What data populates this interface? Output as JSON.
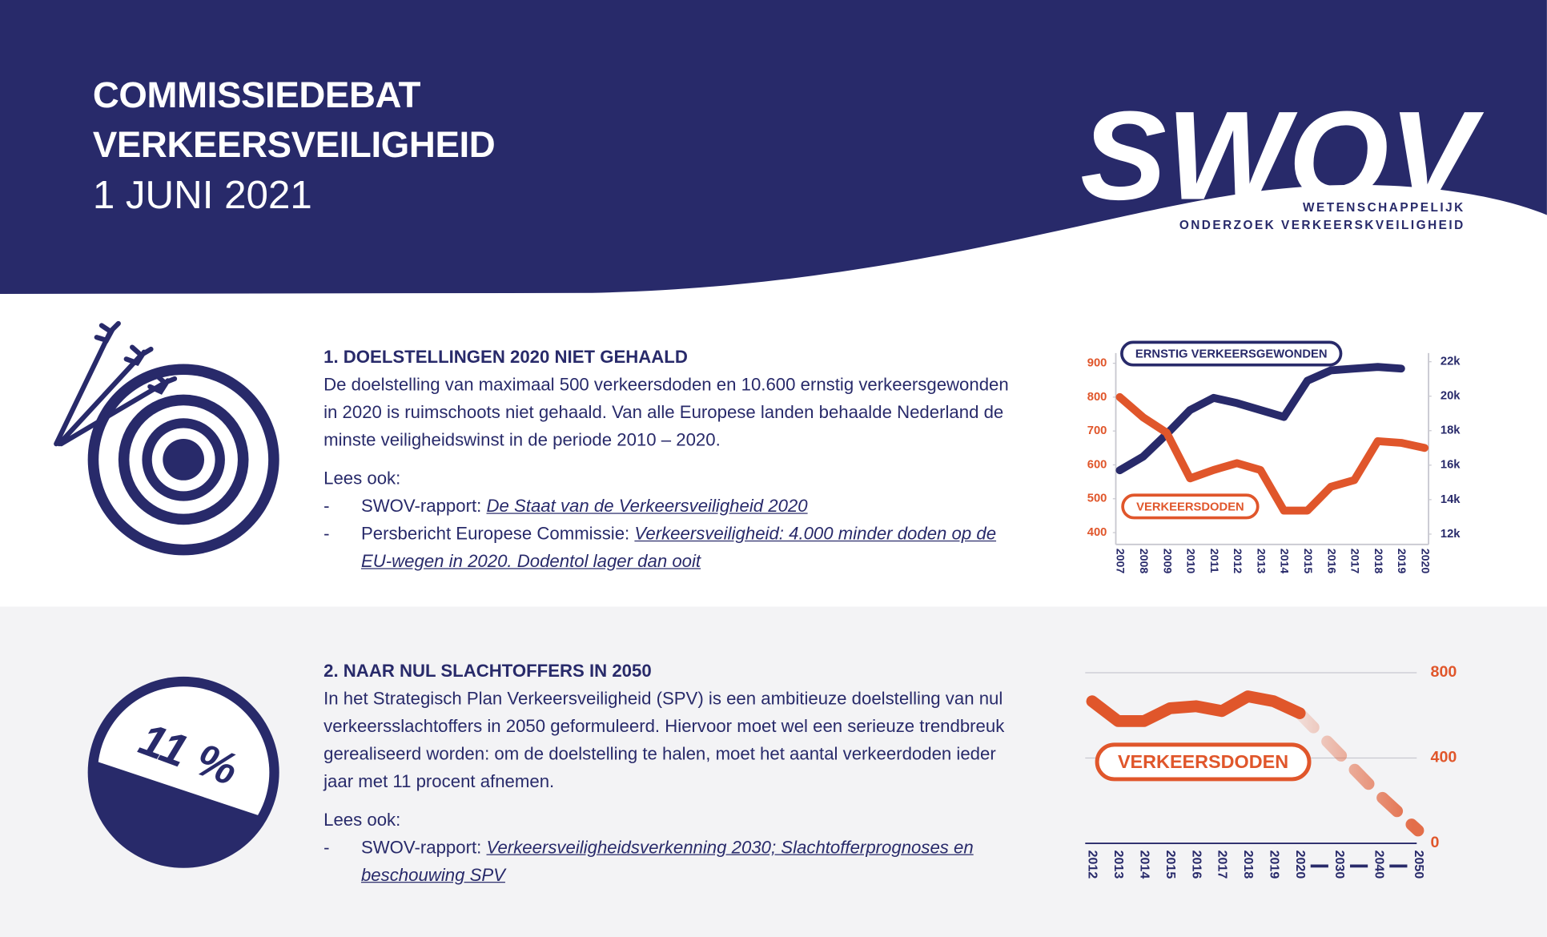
{
  "header": {
    "title": [
      "COMMISSIEDEBAT",
      "VERKEERSVEILIGHEID"
    ],
    "date": "1 JUNI 2021",
    "logo": "SWOV",
    "logo_subtitle": [
      "WETENSCHAPPELIJK",
      "ONDERZOEK VERKEERSKVEILIGHEID"
    ]
  },
  "sections": [
    {
      "heading": "1. DOELSTELLINGEN 2020 NIET GEHAALD",
      "body": "De doelstelling van maximaal 500 verkeersdoden en 10.600 ernstig verkeersgewonden in 2020 is ruimschoots niet gehaald. Van alle Europese landen behaalde Nederland de minste veiligheidswinst in de periode 2010 – 2020.",
      "see_also": "Lees ook:",
      "links": [
        {
          "bullet": "-",
          "source": "SWOV-rapport:",
          "title": "De Staat van de Verkeersveiligheid 2020"
        },
        {
          "bullet": "-",
          "source": "Persbericht Europese Commissie:",
          "title": "Verkeersveiligheid: 4.000 minder doden op de EU-wegen in 2020. Dodentol lager dan ooit"
        }
      ]
    },
    {
      "heading": "2. NAAR NUL SLACHTOFFERS IN 2050",
      "icon_text": "11 %",
      "body": "In het Strategisch Plan Verkeersveiligheid (SPV) is een ambitieuze doelstelling van nul verkeersslachtoffers in 2050 geformuleerd. Hiervoor moet wel een serieuze trendbreuk gerealiseerd worden: om de doelstelling te halen, moet het aantal verkeerdoden ieder jaar met 11 procent afnemen.",
      "see_also": "Lees ook:",
      "links": [
        {
          "bullet": "-",
          "source": "SWOV-rapport:",
          "title": "Verkeersveiligheidsverkenning 2030; Slachtofferprognoses en beschouwing SPV"
        }
      ]
    }
  ],
  "chart_data": [
    {
      "type": "line",
      "categories": [
        "2007",
        "2008",
        "2009",
        "2010",
        "2011",
        "2012",
        "2013",
        "2014",
        "2015",
        "2016",
        "2017",
        "2018",
        "2019",
        "2020"
      ],
      "series": [
        {
          "name": "ERNSTIG VERKEERSGEWONDEN",
          "color": "#282a6a",
          "axis": "y2",
          "values": [
            15700,
            16500,
            17800,
            19200,
            19900,
            19600,
            19200,
            18800,
            20900,
            21500,
            21600,
            21700,
            21600,
            null
          ]
        },
        {
          "name": "VERKEERSDODEN",
          "color": "#e0562b",
          "values": [
            800,
            740,
            695,
            560,
            585,
            605,
            585,
            465,
            465,
            535,
            555,
            670,
            665,
            650
          ]
        }
      ],
      "ylim": [
        365,
        930
      ],
      "yticks": [
        400,
        500,
        600,
        700,
        800,
        900
      ],
      "y2lim": [
        11400,
        22500
      ],
      "y2ticks": [
        {
          "value": 12000,
          "label": "12k"
        },
        {
          "value": 14000,
          "label": "14k"
        },
        {
          "value": 16000,
          "label": "16k"
        },
        {
          "value": 18000,
          "label": "18k"
        },
        {
          "value": 20000,
          "label": "20k"
        },
        {
          "value": 22000,
          "label": "22k"
        }
      ],
      "grid": false
    },
    {
      "type": "line",
      "categories": [
        "2012",
        "2013",
        "2014",
        "2015",
        "2016",
        "2017",
        "2018",
        "2019",
        "2020",
        "2030",
        "2040",
        "2050"
      ],
      "series": [
        {
          "name": "VERKEERSDODEN",
          "color": "#e0562b",
          "values": [
            666,
            573,
            573,
            633,
            643,
            620,
            689,
            666,
            610,
            null,
            null,
            null
          ]
        },
        {
          "color": "#e0562b",
          "style": "dashed",
          "values": [
            null,
            null,
            null,
            null,
            null,
            null,
            null,
            null,
            610,
            420,
            230,
            60
          ]
        }
      ],
      "ylim": [
        0,
        800
      ],
      "yticks": [
        0,
        400,
        800
      ],
      "y_axis_side": "right",
      "grid": true
    }
  ]
}
